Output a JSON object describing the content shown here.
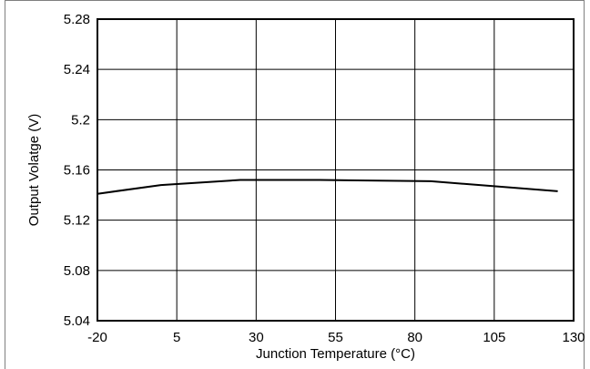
{
  "chart_data": {
    "type": "line",
    "title": "",
    "xlabel": "Junction Temperature (°C)",
    "ylabel": "Output Volatge (V)",
    "xlim": [
      -20,
      130
    ],
    "ylim": [
      5.04,
      5.28
    ],
    "x_ticks": [
      -20,
      5,
      30,
      55,
      80,
      105,
      130
    ],
    "x_tick_labels": [
      "-20",
      "5",
      "30",
      "55",
      "80",
      "105",
      "130"
    ],
    "y_ticks": [
      5.04,
      5.08,
      5.12,
      5.16,
      5.2,
      5.24,
      5.28
    ],
    "y_tick_labels": [
      "5.04",
      "5.08",
      "5.12",
      "5.16",
      "5.2",
      "5.24",
      "5.28"
    ],
    "grid": true,
    "series": [
      {
        "x": [
          -20,
          0,
          25,
          50,
          85,
          105,
          125
        ],
        "y": [
          5.141,
          5.148,
          5.152,
          5.152,
          5.151,
          5.147,
          5.143
        ]
      }
    ]
  }
}
